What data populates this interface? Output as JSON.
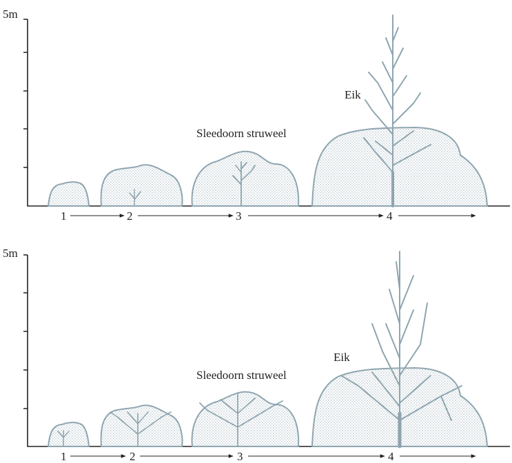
{
  "panels": [
    {
      "axis_label": "5m",
      "labels": {
        "oak": "Eik",
        "shrub": "Sleedoorn struweel"
      },
      "stages": [
        "1",
        "2",
        "3",
        "4"
      ]
    },
    {
      "axis_label": "5m",
      "labels": {
        "oak": "Eik",
        "shrub": "Sleedoorn struweel"
      },
      "stages": [
        "1",
        "2",
        "3",
        "4"
      ]
    }
  ]
}
